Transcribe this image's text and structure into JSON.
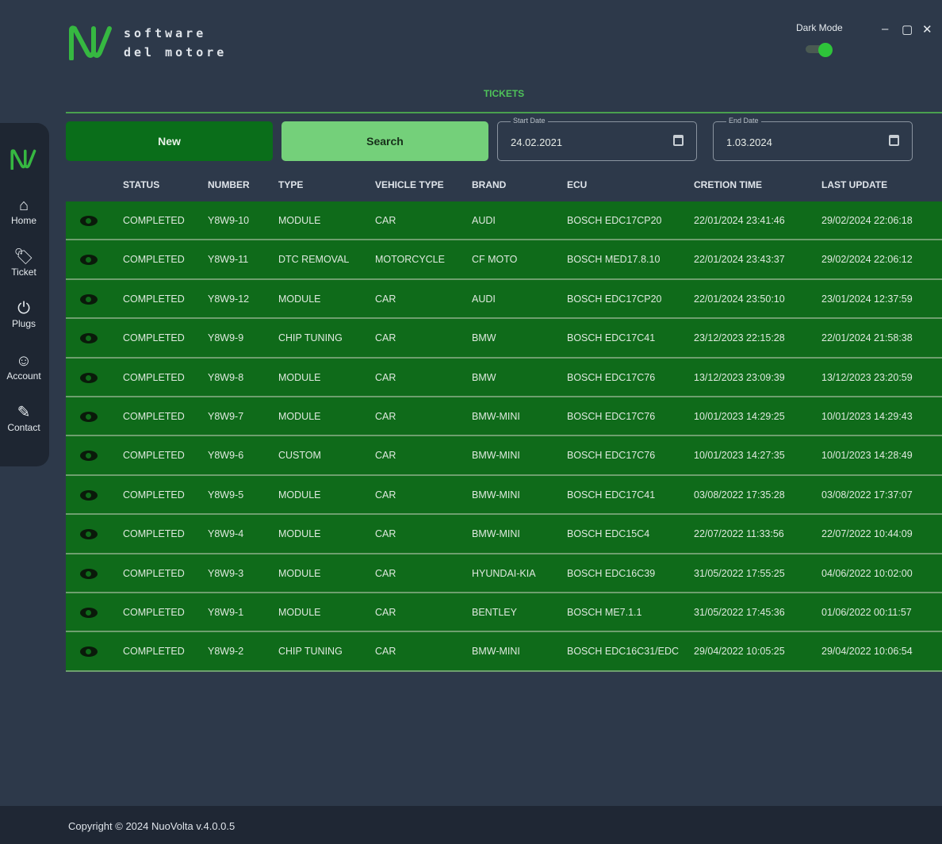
{
  "app": {
    "logo_line1": "software",
    "logo_line2": "del motore",
    "dark_mode_label": "Dark Mode",
    "dark_mode_on": true
  },
  "window": {
    "minimize": "–",
    "maximize": "▢",
    "close": "✕"
  },
  "page_title": "TICKETS",
  "toolbar": {
    "new_label": "New",
    "search_label": "Search",
    "start_date_label": "Start Date",
    "start_date": "24.02.2021",
    "end_date_label": "End Date",
    "end_date": "1.03.2024"
  },
  "sidebar": {
    "items": [
      {
        "label": "Home",
        "icon": "home-icon"
      },
      {
        "label": "Ticket",
        "icon": "tag-icon"
      },
      {
        "label": "Plugs",
        "icon": "plug-icon"
      },
      {
        "label": "Account",
        "icon": "user-icon"
      },
      {
        "label": "Contact",
        "icon": "edit-icon"
      }
    ]
  },
  "table": {
    "headers": [
      "STATUS",
      "NUMBER",
      "TYPE",
      "VEHICLE TYPE",
      "BRAND",
      "ECU",
      "CRETION TIME",
      "LAST UPDATE"
    ],
    "rows": [
      [
        "COMPLETED",
        "Y8W9-10",
        "MODULE",
        "CAR",
        "AUDI",
        "BOSCH EDC17CP20",
        "22/01/2024 23:41:46",
        "29/02/2024 22:06:18"
      ],
      [
        "COMPLETED",
        "Y8W9-11",
        "DTC REMOVAL",
        "MOTORCYCLE",
        "CF MOTO",
        "BOSCH MED17.8.10",
        "22/01/2024 23:43:37",
        "29/02/2024 22:06:12"
      ],
      [
        "COMPLETED",
        "Y8W9-12",
        "MODULE",
        "CAR",
        "AUDI",
        "BOSCH EDC17CP20",
        "22/01/2024 23:50:10",
        "23/01/2024 12:37:59"
      ],
      [
        "COMPLETED",
        "Y8W9-9",
        "CHIP TUNING",
        "CAR",
        "BMW",
        "BOSCH EDC17C41",
        "23/12/2023 22:15:28",
        "22/01/2024 21:58:38"
      ],
      [
        "COMPLETED",
        "Y8W9-8",
        "MODULE",
        "CAR",
        "BMW",
        "BOSCH EDC17C76",
        "13/12/2023 23:09:39",
        "13/12/2023 23:20:59"
      ],
      [
        "COMPLETED",
        "Y8W9-7",
        "MODULE",
        "CAR",
        "BMW-MINI",
        "BOSCH EDC17C76",
        "10/01/2023 14:29:25",
        "10/01/2023 14:29:43"
      ],
      [
        "COMPLETED",
        "Y8W9-6",
        "CUSTOM",
        "CAR",
        "BMW-MINI",
        "BOSCH EDC17C76",
        "10/01/2023 14:27:35",
        "10/01/2023 14:28:49"
      ],
      [
        "COMPLETED",
        "Y8W9-5",
        "MODULE",
        "CAR",
        "BMW-MINI",
        "BOSCH EDC17C41",
        "03/08/2022 17:35:28",
        "03/08/2022 17:37:07"
      ],
      [
        "COMPLETED",
        "Y8W9-4",
        "MODULE",
        "CAR",
        "BMW-MINI",
        "BOSCH EDC15C4",
        "22/07/2022 11:33:56",
        "22/07/2022 10:44:09"
      ],
      [
        "COMPLETED",
        "Y8W9-3",
        "MODULE",
        "CAR",
        "HYUNDAI-KIA",
        "BOSCH EDC16C39",
        "31/05/2022 17:55:25",
        "04/06/2022 10:02:00"
      ],
      [
        "COMPLETED",
        "Y8W9-1",
        "MODULE",
        "CAR",
        "BENTLEY",
        "BOSCH ME7.1.1",
        "31/05/2022 17:45:36",
        "01/06/2022 00:11:57"
      ],
      [
        "COMPLETED",
        "Y8W9-2",
        "CHIP TUNING",
        "CAR",
        "BMW-MINI",
        "BOSCH EDC16C31/EDC",
        "29/04/2022 10:05:25",
        "29/04/2022 10:06:54"
      ]
    ]
  },
  "footer": {
    "copyright": "Copyright © 2024 NuoVolta v.4.0.0.5"
  },
  "colors": {
    "accent": "#4fc35a",
    "row_bg": "#0f6b1a",
    "new_button": "#0a6e1a",
    "search_button": "#74d07a",
    "background": "#2d394a"
  }
}
